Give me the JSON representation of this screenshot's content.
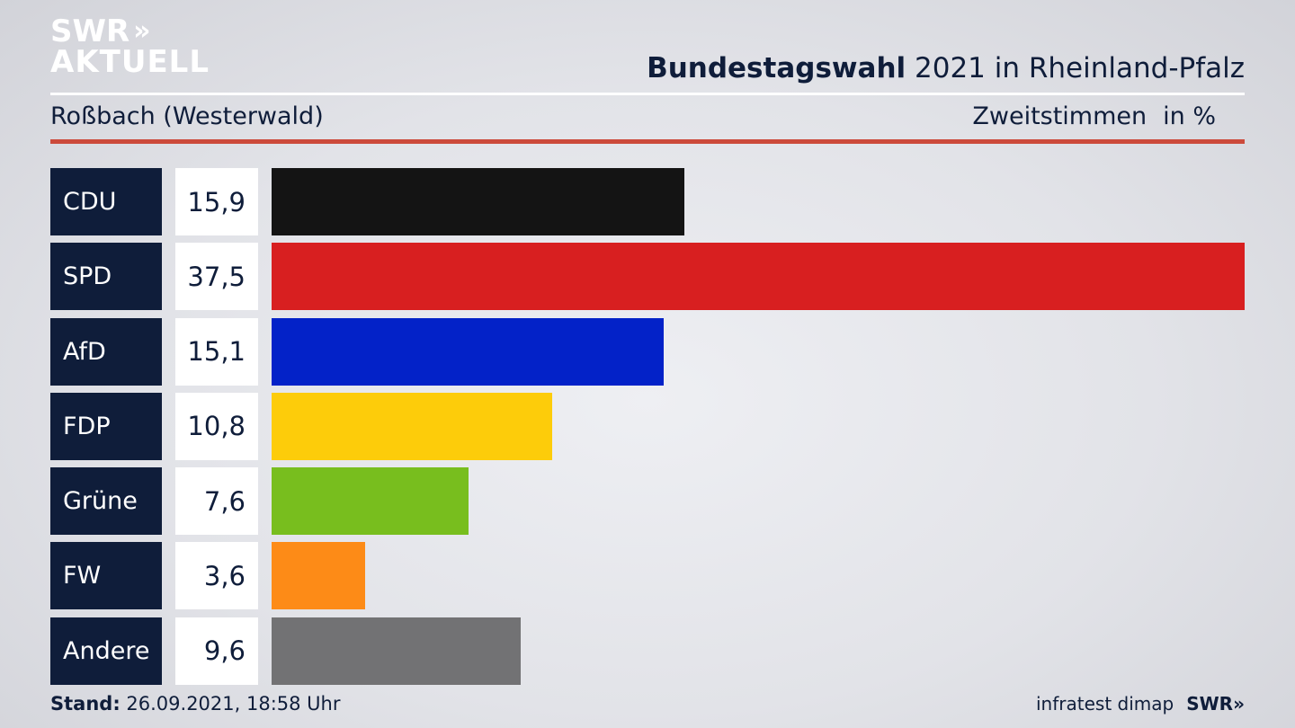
{
  "logo": {
    "line1": "SWR",
    "chevrons": "»",
    "line2": "AKTUELL"
  },
  "header": {
    "title_bold": "Bundestagswahl",
    "title_rest": " 2021 in Rheinland-Pfalz",
    "region": "Roßbach (Westerwald)",
    "metric": "Zweitstimmen",
    "unit": "in %"
  },
  "chart_data": {
    "type": "bar",
    "orientation": "horizontal",
    "categories": [
      "CDU",
      "SPD",
      "AfD",
      "FDP",
      "Grüne",
      "FW",
      "Andere"
    ],
    "values": [
      15.9,
      37.5,
      15.1,
      10.8,
      7.6,
      3.6,
      9.6
    ],
    "value_labels": [
      "15,9",
      "37,5",
      "15,1",
      "10,8",
      "7,6",
      "3,6",
      "9,6"
    ],
    "colors": [
      "#141414",
      "#d81f20",
      "#0322c8",
      "#fdcc0a",
      "#78be1e",
      "#fd8b17",
      "#727274"
    ],
    "xlim": [
      0,
      37.5
    ],
    "grid": false
  },
  "footer": {
    "stand_label": "Stand:",
    "stand_value": " 26.09.2021, 18:58 Uhr",
    "source": "infratest dimap",
    "brand": "SWR»"
  }
}
